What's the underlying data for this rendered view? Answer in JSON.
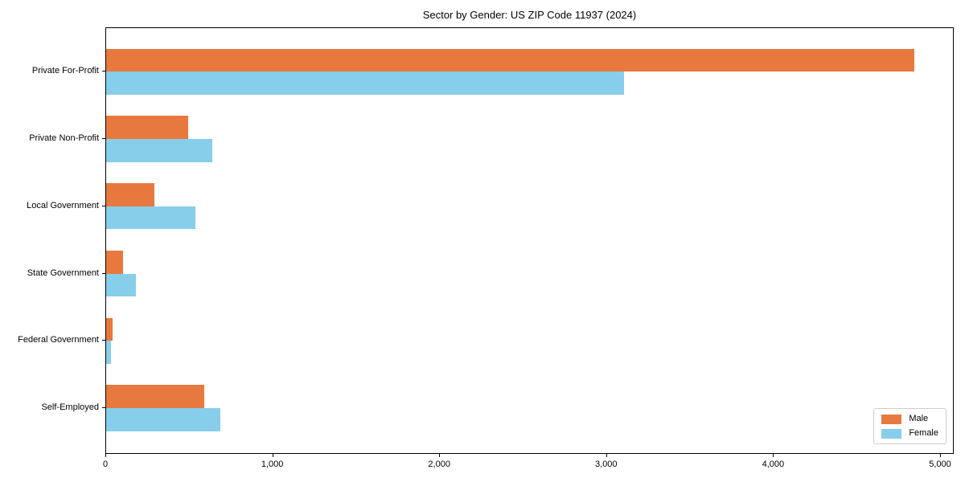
{
  "chart_data": {
    "type": "bar",
    "orientation": "horizontal",
    "title": "Sector by Gender: US ZIP Code 11937 (2024)",
    "categories": [
      "Private For-Profit",
      "Private Non-Profit",
      "Local Government",
      "State Government",
      "Federal Government",
      "Self-Employed"
    ],
    "series": [
      {
        "name": "Male",
        "color": "#e8793e",
        "values": [
          4840,
          490,
          290,
          100,
          40,
          590
        ]
      },
      {
        "name": "Female",
        "color": "#87ceeb",
        "values": [
          3100,
          635,
          535,
          180,
          30,
          685
        ]
      }
    ],
    "xlabel": "",
    "ylabel": "",
    "x_ticks": [
      0,
      1000,
      2000,
      3000,
      4000,
      5000
    ],
    "x_tick_labels": [
      "0",
      "1,000",
      "2,000",
      "3,000",
      "4,000",
      "5,000"
    ],
    "xlim": [
      0,
      5082
    ],
    "grid": false,
    "legend_position": "lower right",
    "axis_color": "#000000",
    "background_color": "#ffffff"
  }
}
